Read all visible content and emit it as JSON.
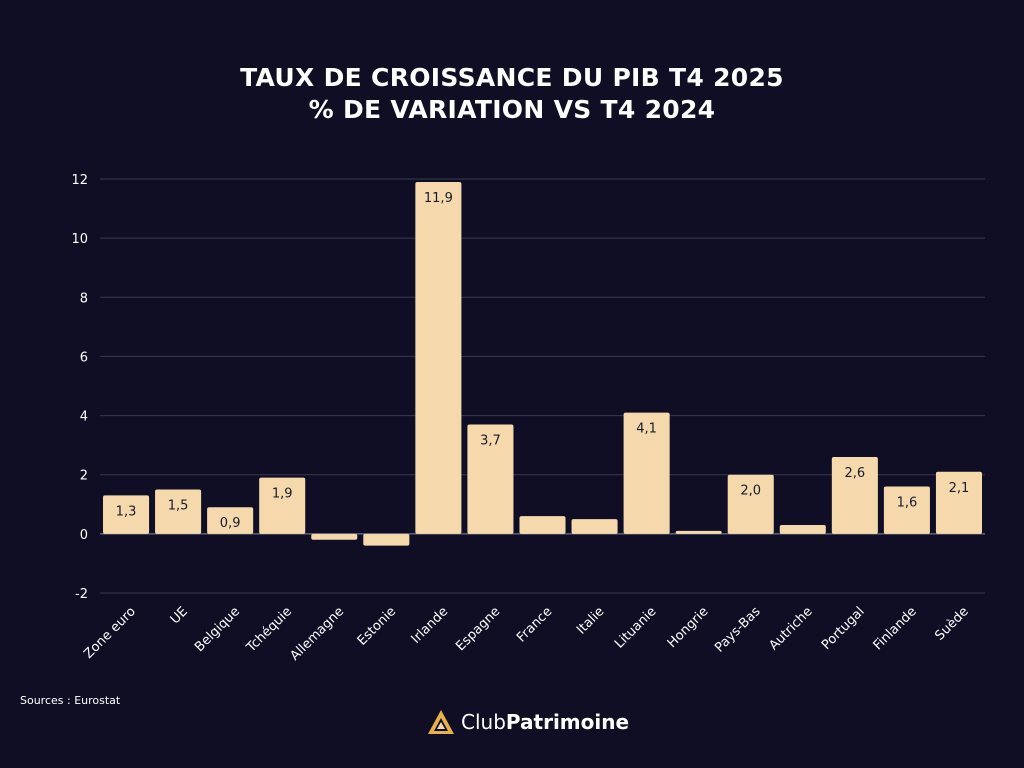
{
  "title_line1": "TAUX DE CROISSANCE DU PIB T4 2025",
  "title_line2": "% DE VARIATION VS T4 2024",
  "source": "Sources : Eurostat",
  "brand": {
    "part1": "Club",
    "part2": "Patrimoine"
  },
  "colors": {
    "background": "#0f0e24",
    "bar": "#f5d9ad",
    "grid": "#3a3950",
    "text": "#ffffff",
    "label": "#1a1a2e",
    "logo": "#e8b04a"
  },
  "chart_data": {
    "type": "bar",
    "title": "TAUX DE CROISSANCE DU PIB T4 2025 — % DE VARIATION VS T4 2024",
    "categories": [
      "Zone euro",
      "UE",
      "Belgique",
      "Tchéquie",
      "Allemagne",
      "Estonie",
      "Irlande",
      "Espagne",
      "France",
      "Italie",
      "Lituanie",
      "Hongrie",
      "Pays-Bas",
      "Autriche",
      "Portugal",
      "Finlande",
      "Suède"
    ],
    "values": [
      1.3,
      1.5,
      0.9,
      1.9,
      -0.2,
      -0.4,
      11.9,
      3.7,
      0.6,
      0.5,
      4.1,
      0.1,
      2.0,
      0.3,
      2.6,
      1.6,
      2.1
    ],
    "data_labels": [
      "1,3",
      "1,5",
      "0,9",
      "1,9",
      "",
      "",
      "11,9",
      "3,7",
      "",
      "",
      "4,1",
      "",
      "2,0",
      "",
      "2,6",
      "1,6",
      "2,1"
    ],
    "yticks": [
      -2,
      0,
      2,
      4,
      6,
      8,
      10,
      12
    ],
    "ylim": [
      -2,
      12
    ],
    "xlabel": "",
    "ylabel": "",
    "grid": true
  }
}
